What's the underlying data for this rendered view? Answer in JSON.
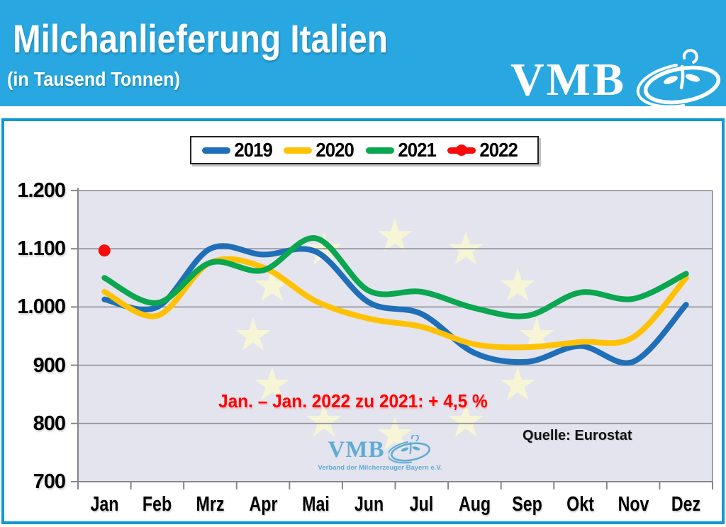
{
  "header": {
    "title": "Milchanlieferung Italien",
    "subtitle": "(in Tausend Tonnen)",
    "logo_text": "VMB"
  },
  "chart_data": {
    "type": "line",
    "title": "Milchanlieferung Italien",
    "subtitle": "(in Tausend Tonnen)",
    "unit": "Tausend Tonnen",
    "categories": [
      "Jan",
      "Feb",
      "Mrz",
      "Apr",
      "Mai",
      "Jun",
      "Jul",
      "Aug",
      "Sep",
      "Okt",
      "Nov",
      "Dez"
    ],
    "series": [
      {
        "name": "2019",
        "color": "#1F6FB8",
        "style": "line",
        "values": [
          1013,
          1000,
          1100,
          1090,
          1095,
          1008,
          988,
          921,
          906,
          933,
          906,
          1004
        ]
      },
      {
        "name": "2020",
        "color": "#FFC103",
        "style": "line",
        "values": [
          1026,
          985,
          1076,
          1068,
          1010,
          980,
          966,
          936,
          931,
          940,
          948,
          1050
        ]
      },
      {
        "name": "2021",
        "color": "#0BA650",
        "style": "line",
        "values": [
          1050,
          1007,
          1076,
          1063,
          1118,
          1028,
          1026,
          998,
          985,
          1025,
          1014,
          1057
        ]
      },
      {
        "name": "2022",
        "color": "#F80A0A",
        "style": "point",
        "values": [
          1097
        ]
      }
    ],
    "ylim": [
      700,
      1200
    ],
    "ytick_step": 100,
    "ytick_labels": [
      "700",
      "800",
      "900",
      "1.000",
      "1.100",
      "1.200"
    ],
    "grid": true,
    "legend_position": "top",
    "annotation": "Jan. – Jan. 2022 zu 2021: + 4,5 %",
    "source": "Quelle: Eurostat",
    "watermark": {
      "text": "VMB",
      "subtext": "Verband der Milcherzeuger Bayern e.V."
    }
  },
  "colors": {
    "banner": "#29A7E0",
    "frame_border": "#0F99D6",
    "plot_bg": "#E4E4EE",
    "gridline": "#97979F",
    "axis": "#85868C",
    "star": "#F7F5D4",
    "annotation_red": "#FF0000",
    "watermark_blue": "#3E9ECF"
  }
}
